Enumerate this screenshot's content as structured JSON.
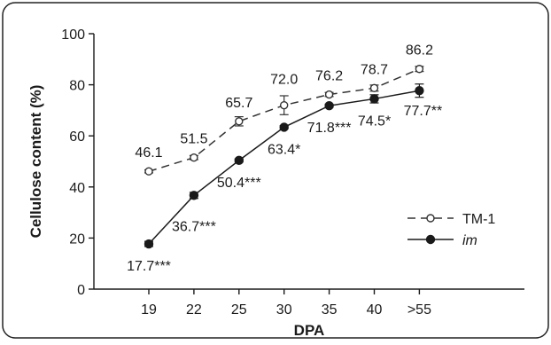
{
  "chart_data": {
    "type": "line",
    "xlabel": "DPA",
    "ylabel": "Cellulose content (%)",
    "categories": [
      "19",
      "22",
      "25",
      "30",
      "35",
      "40",
      ">55"
    ],
    "ylim": [
      0,
      100
    ],
    "yticks": [
      "0",
      "20",
      "40",
      "60",
      "80",
      "100"
    ],
    "grid": false,
    "legend_position": "lower-right",
    "series": [
      {
        "name": "TM-1",
        "marker": "open-circle",
        "line_style": "dashed",
        "color": "#333333",
        "values": [
          46.1,
          51.5,
          65.7,
          72.0,
          76.2,
          78.7,
          86.2
        ],
        "errors": [
          0.6,
          0.8,
          1.8,
          3.7,
          0.8,
          1.2,
          1.0
        ],
        "labels": [
          "46.1",
          "51.5",
          "65.7",
          "72.0",
          "76.2",
          "78.7",
          "86.2"
        ]
      },
      {
        "name": "im",
        "marker": "filled-circle",
        "line_style": "solid",
        "color": "#1a1a1a",
        "values": [
          17.7,
          36.7,
          50.4,
          63.4,
          71.8,
          74.5,
          77.7
        ],
        "errors": [
          1.0,
          1.2,
          0.6,
          0.6,
          0.6,
          1.6,
          2.6
        ],
        "labels": [
          "17.7***",
          "36.7***",
          "50.4***",
          "63.4*",
          "71.8***",
          "74.5*",
          "77.7**"
        ]
      }
    ]
  }
}
